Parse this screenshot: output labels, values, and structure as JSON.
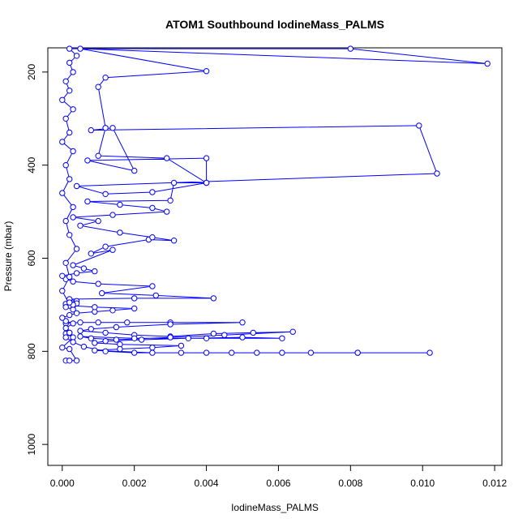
{
  "chart_data": {
    "type": "line",
    "title": "ATOM1 Southbound IodineMass_PALMS",
    "xlabel": "IodineMass_PALMS",
    "ylabel": "Pressure (mbar)",
    "xlim": [
      -0.0004,
      0.0122
    ],
    "ylim": [
      1045,
      148
    ],
    "y_reversed": true,
    "grid": false,
    "legend": "none",
    "x_ticks": [
      0.0,
      0.002,
      0.004,
      0.006,
      0.008,
      0.01,
      0.012
    ],
    "x_tick_labels": [
      "0.000",
      "0.002",
      "0.004",
      "0.006",
      "0.008",
      "0.010",
      "0.012"
    ],
    "y_ticks": [
      200,
      400,
      600,
      800,
      1000
    ],
    "y_tick_labels": [
      "200",
      "400",
      "600",
      "800",
      "1000"
    ],
    "series": [
      {
        "color": "#0000ff",
        "marker": "open-circle",
        "points": [
          [
            0.0001,
            820
          ],
          [
            0.0002,
            820
          ],
          [
            0.0004,
            820
          ],
          [
            0.0002,
            795
          ],
          [
            0.0,
            792
          ],
          [
            0.0003,
            770
          ],
          [
            0.0001,
            762
          ],
          [
            0.0002,
            760
          ],
          [
            0.0001,
            740
          ],
          [
            0.0005,
            738
          ],
          [
            0.001,
            738
          ],
          [
            0.0018,
            738
          ],
          [
            0.003,
            738
          ],
          [
            0.005,
            738
          ],
          [
            0.003,
            742
          ],
          [
            0.0015,
            748
          ],
          [
            0.0008,
            752
          ],
          [
            0.0005,
            756
          ],
          [
            0.0012,
            760
          ],
          [
            0.002,
            765
          ],
          [
            0.003,
            768
          ],
          [
            0.0042,
            762
          ],
          [
            0.0053,
            760
          ],
          [
            0.0064,
            758
          ],
          [
            0.0045,
            765
          ],
          [
            0.003,
            770
          ],
          [
            0.0015,
            775
          ],
          [
            0.0008,
            772
          ],
          [
            0.0005,
            768
          ],
          [
            0.002,
            772
          ],
          [
            0.004,
            772
          ],
          [
            0.0061,
            772
          ],
          [
            0.005,
            770
          ],
          [
            0.0035,
            772
          ],
          [
            0.0022,
            775
          ],
          [
            0.0012,
            778
          ],
          [
            0.0009,
            782
          ],
          [
            0.0016,
            785
          ],
          [
            0.0033,
            788
          ],
          [
            0.0025,
            792
          ],
          [
            0.0016,
            795
          ],
          [
            0.0009,
            798
          ],
          [
            0.0025,
            803
          ],
          [
            0.004,
            803
          ],
          [
            0.0054,
            803
          ],
          [
            0.0069,
            803
          ],
          [
            0.0082,
            803
          ],
          [
            0.0102,
            803
          ],
          [
            0.0082,
            803
          ],
          [
            0.0061,
            803
          ],
          [
            0.0047,
            803
          ],
          [
            0.0033,
            803
          ],
          [
            0.002,
            803
          ],
          [
            0.0012,
            800
          ],
          [
            0.0006,
            790
          ],
          [
            0.0003,
            780
          ],
          [
            0.0001,
            770
          ],
          [
            0.0002,
            760
          ],
          [
            0.0001,
            750
          ],
          [
            0.0003,
            740
          ],
          [
            0.0001,
            735
          ],
          [
            0.0,
            728
          ],
          [
            0.0002,
            722
          ],
          [
            0.0004,
            718
          ],
          [
            0.0009,
            715
          ],
          [
            0.0014,
            712
          ],
          [
            0.002,
            708
          ],
          [
            0.0009,
            705
          ],
          [
            0.0003,
            702
          ],
          [
            0.0001,
            700
          ],
          [
            0.0002,
            695
          ],
          [
            0.0004,
            692
          ],
          [
            0.0002,
            688
          ],
          [
            0.002,
            686
          ],
          [
            0.0042,
            686
          ],
          [
            0.0026,
            680
          ],
          [
            0.0011,
            675
          ],
          [
            0.0025,
            660
          ],
          [
            0.001,
            655
          ],
          [
            0.0003,
            650
          ],
          [
            0.0001,
            645
          ],
          [
            0.0,
            638
          ],
          [
            0.0004,
            632
          ],
          [
            0.0009,
            628
          ],
          [
            0.0006,
            622
          ],
          [
            0.0003,
            615
          ],
          [
            0.0014,
            582
          ],
          [
            0.0008,
            590
          ],
          [
            0.0012,
            575
          ],
          [
            0.0024,
            560
          ],
          [
            0.0031,
            562
          ],
          [
            0.0025,
            555
          ],
          [
            0.0016,
            545
          ],
          [
            0.0005,
            530
          ],
          [
            0.001,
            520
          ],
          [
            0.0003,
            512
          ],
          [
            0.0014,
            507
          ],
          [
            0.0029,
            500
          ],
          [
            0.0025,
            492
          ],
          [
            0.0016,
            485
          ],
          [
            0.0007,
            478
          ],
          [
            0.003,
            476
          ],
          [
            0.0031,
            438
          ],
          [
            0.004,
            438
          ],
          [
            0.0025,
            458
          ],
          [
            0.0012,
            462
          ],
          [
            0.0004,
            445
          ],
          [
            0.0104,
            418
          ],
          [
            0.0099,
            315
          ],
          [
            0.0008,
            325
          ],
          [
            0.0014,
            320
          ],
          [
            0.002,
            412
          ],
          [
            0.0007,
            390
          ],
          [
            0.004,
            385
          ],
          [
            0.004,
            438
          ],
          [
            0.0029,
            385
          ],
          [
            0.001,
            380
          ],
          [
            0.0012,
            320
          ],
          [
            0.001,
            232
          ],
          [
            0.0012,
            212
          ],
          [
            0.004,
            198
          ],
          [
            0.0005,
            150
          ],
          [
            0.0118,
            182
          ],
          [
            0.008,
            150
          ],
          [
            0.0002,
            150
          ],
          [
            0.0004,
            165
          ],
          [
            0.0002,
            180
          ],
          [
            0.0003,
            200
          ],
          [
            0.0001,
            220
          ],
          [
            0.0002,
            240
          ],
          [
            0.0,
            260
          ],
          [
            0.0003,
            280
          ],
          [
            0.0001,
            300
          ],
          [
            0.0002,
            330
          ],
          [
            0.0,
            350
          ],
          [
            0.0003,
            370
          ],
          [
            0.0001,
            400
          ],
          [
            0.0002,
            430
          ],
          [
            0.0,
            460
          ],
          [
            0.0003,
            490
          ],
          [
            0.0001,
            520
          ],
          [
            0.0002,
            550
          ],
          [
            0.0004,
            580
          ],
          [
            0.0001,
            610
          ],
          [
            0.0002,
            640
          ],
          [
            0.0,
            670
          ],
          [
            0.0002,
            700
          ],
          [
            0.0003,
            710
          ],
          [
            0.0001,
            698
          ],
          [
            0.0002,
            702
          ],
          [
            0.0004,
            697
          ],
          [
            0.0001,
            705
          ],
          [
            0.0003,
            700
          ],
          [
            0.0002,
            695
          ]
        ]
      }
    ]
  }
}
